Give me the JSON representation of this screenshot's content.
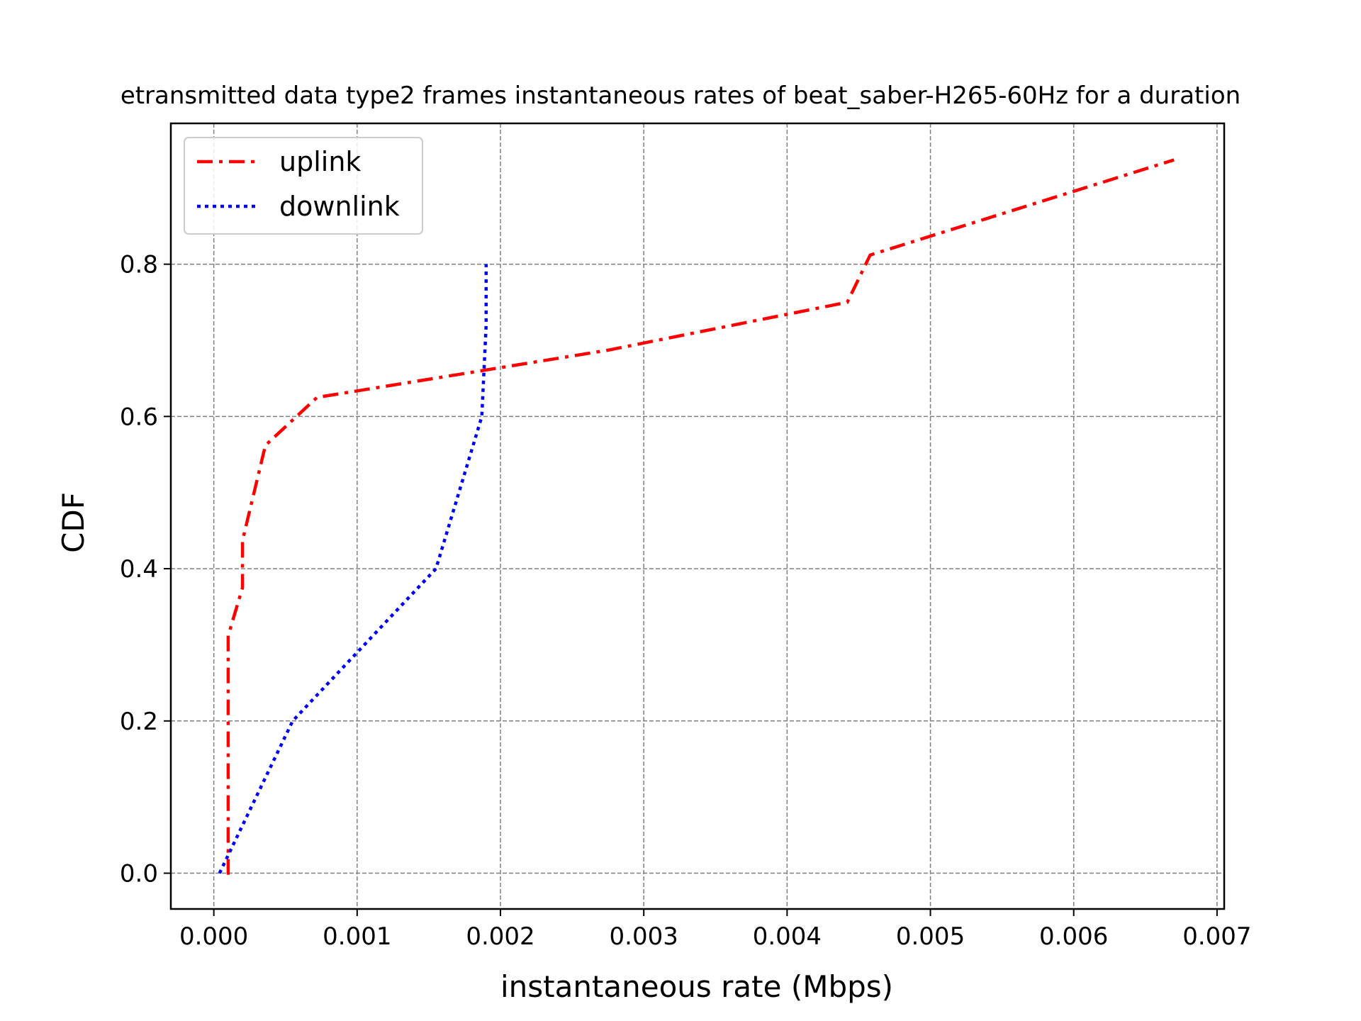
{
  "chart_data": {
    "type": "line",
    "title": "etransmitted data type2 frames instantaneous rates of beat_saber-H265-60Hz for a duration",
    "xlabel": "instantaneous rate (Mbps)",
    "ylabel": "CDF",
    "xlim": [
      -0.0003,
      0.00705
    ],
    "ylim": [
      -0.047,
      0.985
    ],
    "xticks": [
      0.0,
      0.001,
      0.002,
      0.003,
      0.004,
      0.005,
      0.006,
      0.007
    ],
    "xtick_labels": [
      "0.000",
      "0.001",
      "0.002",
      "0.003",
      "0.004",
      "0.005",
      "0.006",
      "0.007"
    ],
    "yticks": [
      0.0,
      0.2,
      0.4,
      0.6,
      0.8
    ],
    "ytick_labels": [
      "0.0",
      "0.2",
      "0.4",
      "0.6",
      "0.8"
    ],
    "grid": true,
    "legend_position": "top-left",
    "series": [
      {
        "name": "uplink",
        "color": "#ff0000",
        "style": "dashdot",
        "x": [
          9e-05,
          0.0001,
          0.0001,
          0.0002,
          0.0002,
          0.00036,
          0.00072,
          0.00275,
          0.00442,
          0.00458,
          0.0067
        ],
        "y": [
          0.0,
          0.0,
          0.312,
          0.375,
          0.437,
          0.562,
          0.625,
          0.687,
          0.75,
          0.812,
          0.937
        ]
      },
      {
        "name": "downlink",
        "color": "#0000ff",
        "style": "dotted",
        "x": [
          4e-05,
          0.00055,
          0.00155,
          0.00187,
          0.0019,
          0.0019
        ],
        "y": [
          0.0,
          0.2,
          0.4,
          0.6,
          0.72,
          0.8
        ]
      }
    ]
  }
}
